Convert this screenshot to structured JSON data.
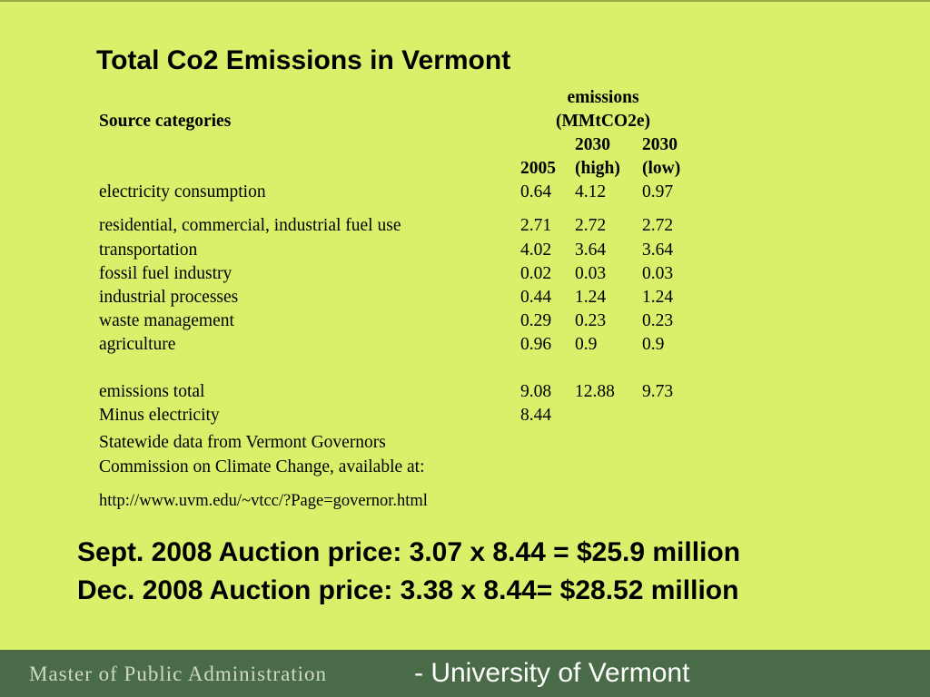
{
  "title": "Total Co2 Emissions in Vermont",
  "table": {
    "col_header_emissions_line1": "emissions",
    "col_header_emissions_line2": "(MMtCO2e)",
    "source_header": "Source categories",
    "col_2005": "2005",
    "col_2030_high_line1": "2030",
    "col_2030_high_line2": "(high)",
    "col_2030_low_line1": "2030",
    "col_2030_low_line2": "(low)",
    "rows": [
      {
        "label": "electricity consumption",
        "v2005": "0.64",
        "high": "4.12",
        "low": "0.97"
      },
      {
        "label": "residential, commercial, industrial fuel use",
        "v2005": "2.71",
        "high": "2.72",
        "low": "2.72"
      },
      {
        "label": "transportation",
        "v2005": "4.02",
        "high": "3.64",
        "low": "3.64"
      },
      {
        "label": "fossil fuel industry",
        "v2005": "0.02",
        "high": "0.03",
        "low": "0.03"
      },
      {
        "label": "industrial processes",
        "v2005": "0.44",
        "high": "1.24",
        "low": "1.24"
      },
      {
        "label": "waste management",
        "v2005": "0.29",
        "high": "0.23",
        "low": "0.23"
      },
      {
        "label": "agriculture",
        "v2005": "0.96",
        "high": "0.9",
        "low": "0.9"
      }
    ],
    "total": {
      "label": "emissions total",
      "v2005": "9.08",
      "high": "12.88",
      "low": "9.73"
    },
    "minus": {
      "label": "Minus electricity",
      "v2005": "8.44"
    },
    "source_line1": "Statewide data from Vermont Governors",
    "source_line2": "Commission on Climate Change, available at:",
    "source_url": "http://www.uvm.edu/~vtcc/?Page=governor.html"
  },
  "auction": {
    "sept": "Sept. 2008 Auction price: 3.07 x 8.44 = $25.9 million",
    "dec": "Dec. 2008 Auction price:  3.38 x 8.44= $28.52 million"
  },
  "footer": {
    "left": "Master of Public Administration",
    "right": "- University of Vermont"
  }
}
